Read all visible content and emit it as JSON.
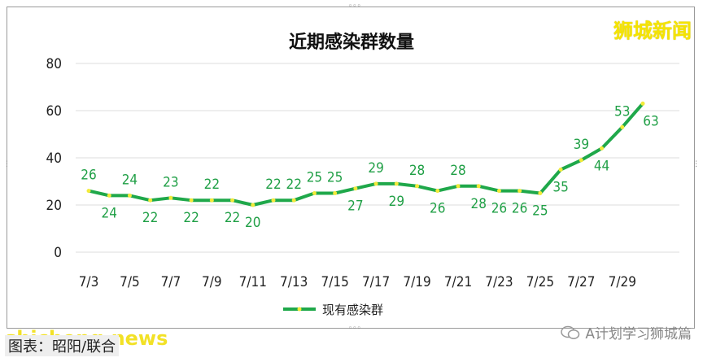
{
  "brand": "狮城新闻",
  "footer": {
    "source": "图表：昭阳/联合",
    "watermark": "shicheng.news",
    "account": "A计划学习狮城篇"
  },
  "chart_data": {
    "type": "line",
    "title": "近期感染群数量",
    "xlabel": "",
    "ylabel": "",
    "ylim": [
      0,
      80
    ],
    "yticks": [
      0,
      20,
      40,
      60,
      80
    ],
    "x": [
      "7/3",
      "7/4",
      "7/5",
      "7/6",
      "7/7",
      "7/8",
      "7/9",
      "7/10",
      "7/11",
      "7/12",
      "7/13",
      "7/14",
      "7/15",
      "7/16",
      "7/17",
      "7/18",
      "7/19",
      "7/20",
      "7/21",
      "7/22",
      "7/23",
      "7/24",
      "7/25",
      "7/26",
      "7/27",
      "7/28",
      "7/29",
      "7/30"
    ],
    "x_tick_labels": [
      "7/3",
      "7/5",
      "7/7",
      "7/9",
      "7/11",
      "7/13",
      "7/15",
      "7/17",
      "7/19",
      "7/21",
      "7/23",
      "7/25",
      "7/27",
      "7/29"
    ],
    "series": [
      {
        "name": "现有感染群",
        "values": [
          26,
          24,
          24,
          22,
          23,
          22,
          22,
          22,
          20,
          22,
          22,
          25,
          25,
          27,
          29,
          29,
          28,
          26,
          28,
          28,
          26,
          26,
          25,
          35,
          39,
          44,
          53,
          63
        ],
        "color": "#1fa84a",
        "marker_color": "#f2ea3a"
      }
    ],
    "grid": true,
    "legend": "bottom"
  }
}
